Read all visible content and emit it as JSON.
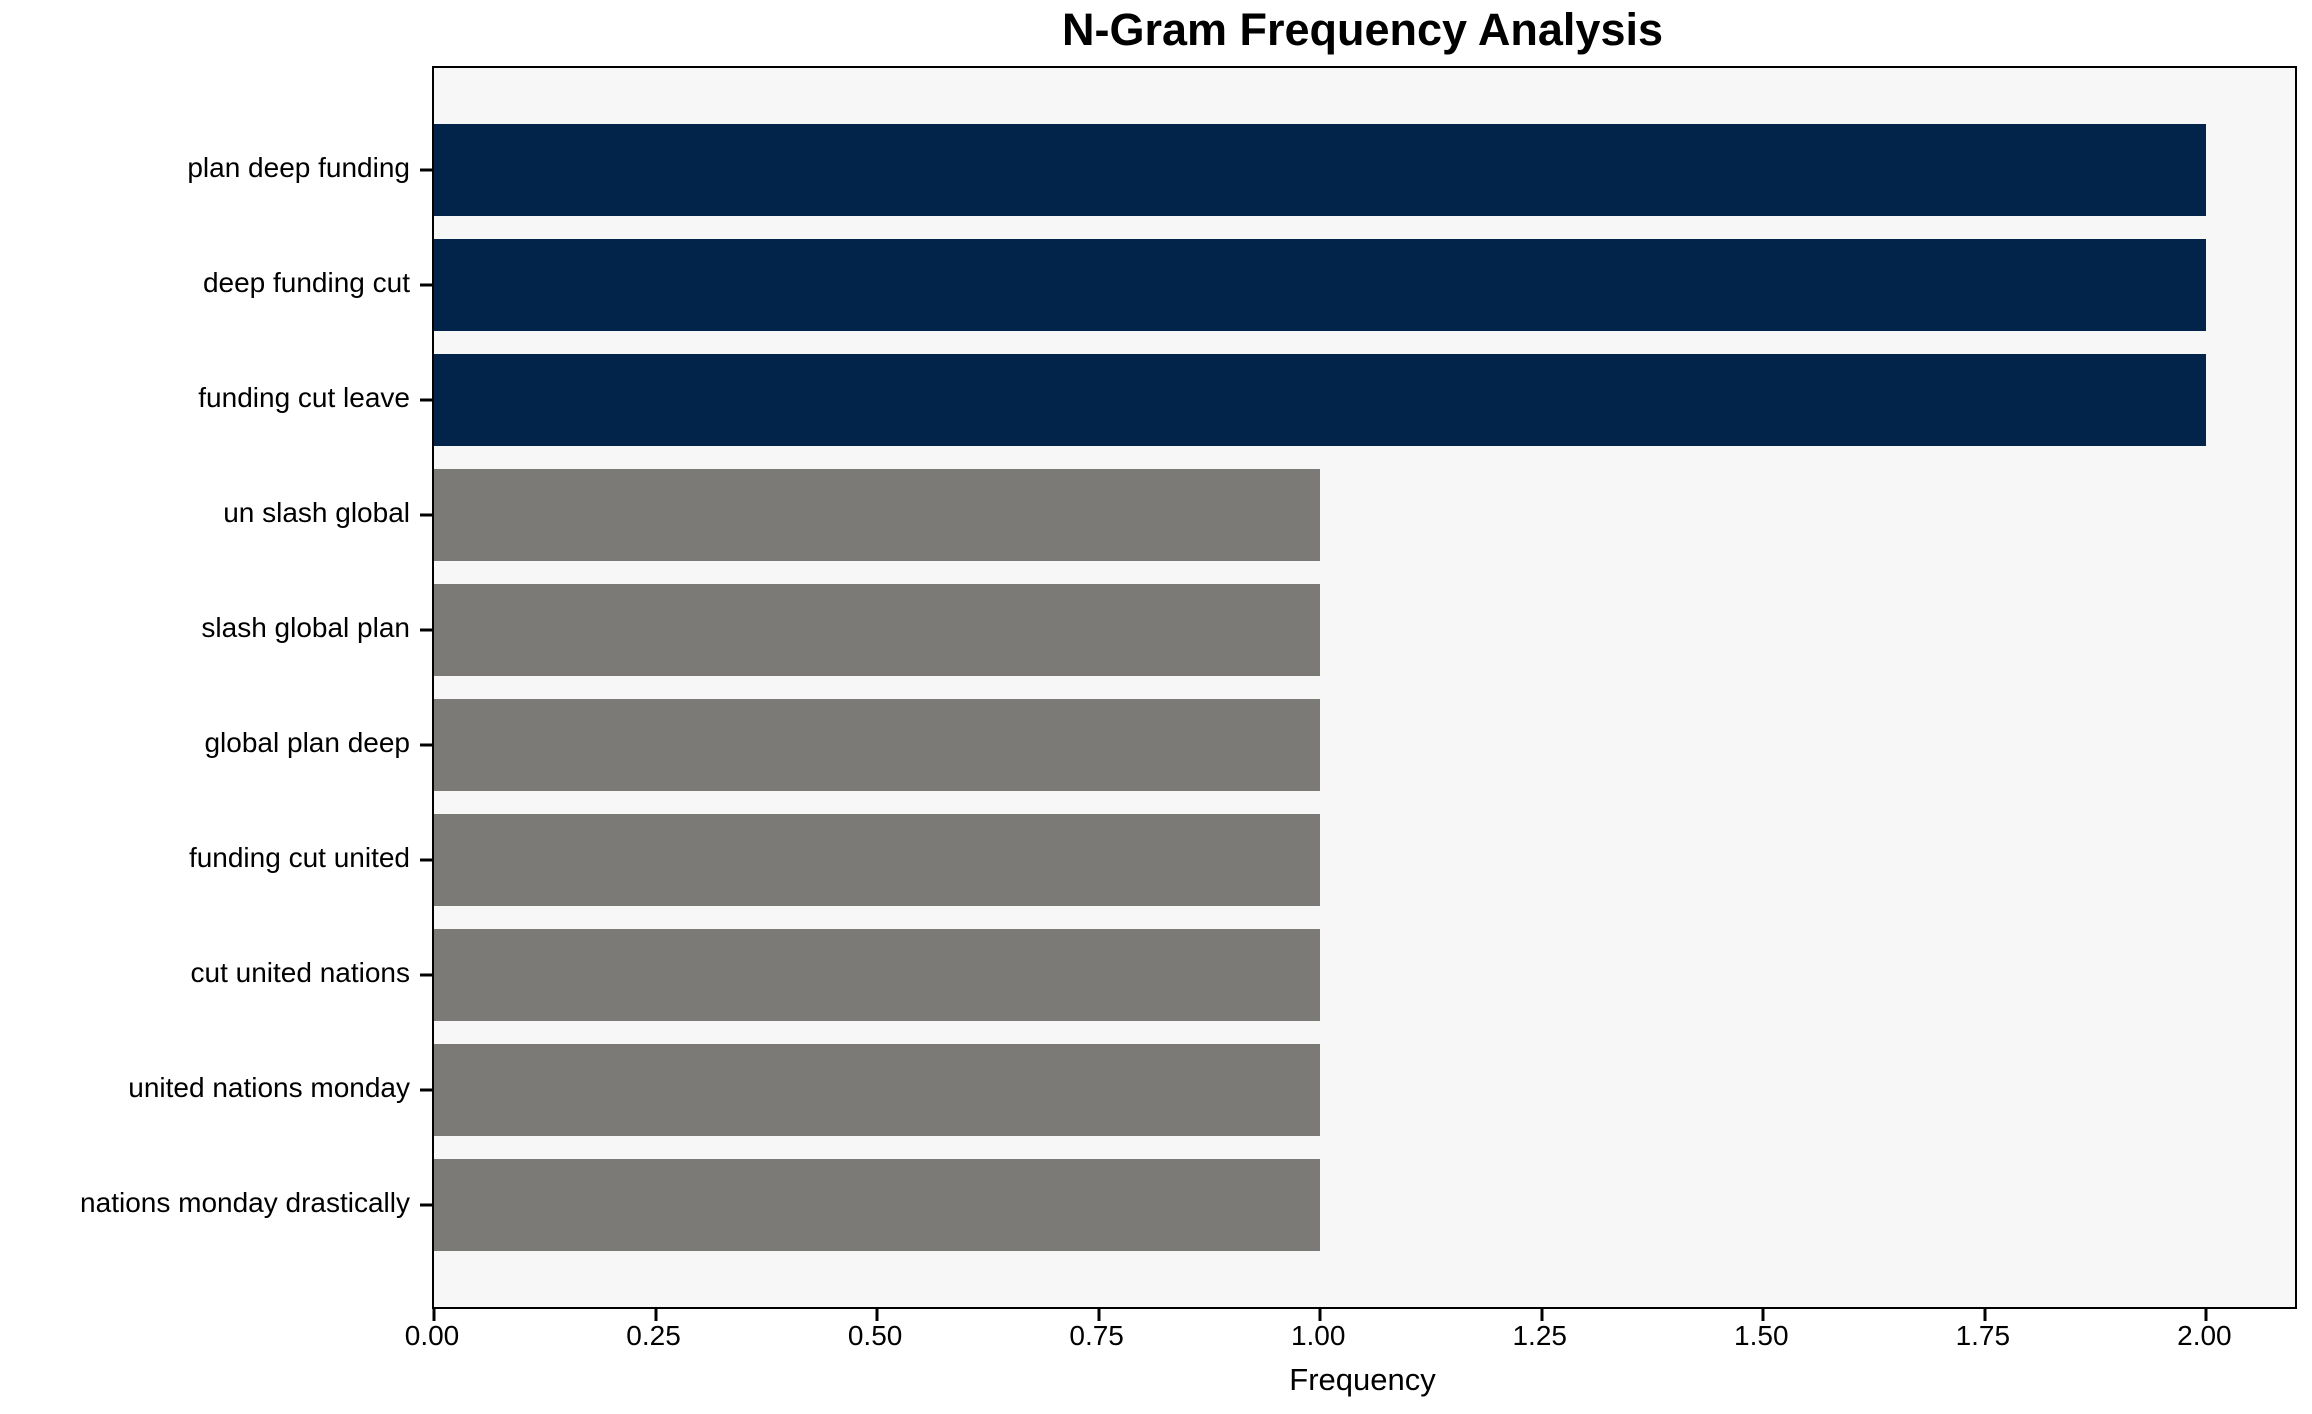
{
  "title": "N-Gram Frequency Analysis",
  "chart_data": {
    "type": "bar",
    "orientation": "horizontal",
    "title": "N-Gram Frequency Analysis",
    "xlabel": "Frequency",
    "ylabel": "",
    "categories": [
      "plan deep funding",
      "deep funding cut",
      "funding cut leave",
      "un slash global",
      "slash global plan",
      "global plan deep",
      "funding cut united",
      "cut united nations",
      "united nations monday",
      "nations monday drastically"
    ],
    "values": [
      2,
      2,
      2,
      1,
      1,
      1,
      1,
      1,
      1,
      1
    ],
    "bar_colors": [
      "#02234a",
      "#02234a",
      "#02234a",
      "#7b7a77",
      "#7b7a77",
      "#7b7a77",
      "#7b7a77",
      "#7b7a77",
      "#7b7a77",
      "#7b7a77"
    ],
    "xlim": [
      0,
      2.1
    ],
    "xticks": [
      0.0,
      0.25,
      0.5,
      0.75,
      1.0,
      1.25,
      1.5,
      1.75,
      2.0
    ],
    "xtick_labels": [
      "0.00",
      "0.25",
      "0.50",
      "0.75",
      "1.00",
      "1.25",
      "1.50",
      "1.75",
      "2.00"
    ],
    "grid": false,
    "legend": null,
    "colors": {
      "highlight": "#02234a",
      "default": "#7b7a77",
      "plot_background": "#f7f7f7",
      "figure_background": "#ffffff",
      "spine": "#000000",
      "text": "#000000"
    }
  }
}
